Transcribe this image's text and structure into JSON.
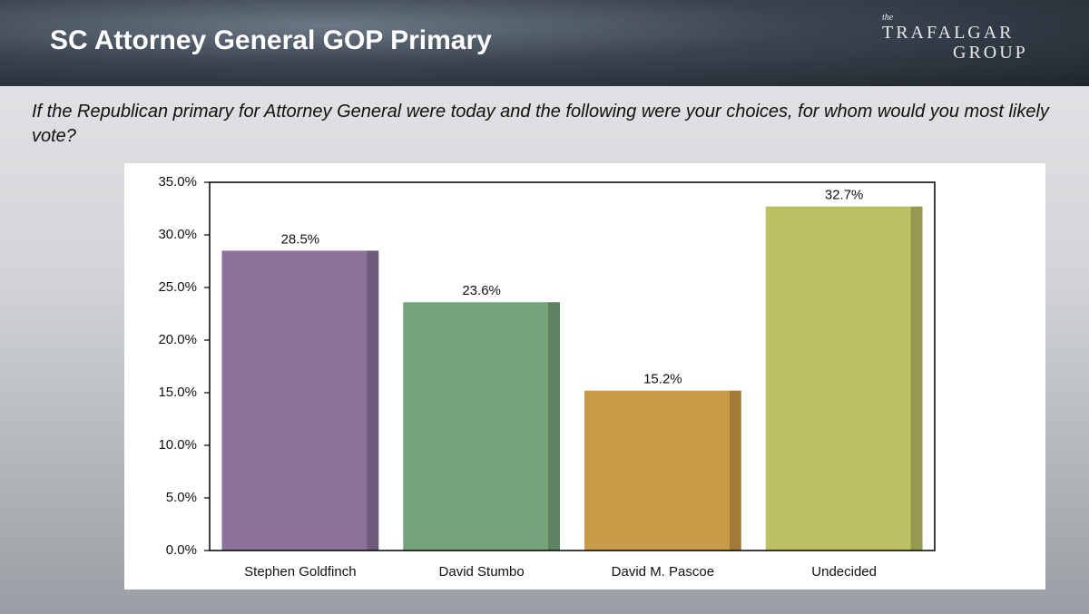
{
  "logo": {
    "small": "the",
    "line1": "TRAFALGAR",
    "line2": "GROUP"
  },
  "chart_data": {
    "type": "bar",
    "title": "SC Attorney General GOP Primary",
    "subtitle": "If the Republican primary for Attorney General were today and the following were your choices, for whom would you most likely vote?",
    "categories": [
      "Stephen Goldfinch",
      "David Stumbo",
      "David M. Pascoe",
      "Undecided"
    ],
    "values": [
      28.5,
      23.6,
      15.2,
      32.7
    ],
    "value_labels": [
      "28.5%",
      "23.6%",
      "15.2%",
      "32.7%"
    ],
    "colors": [
      "#8a7298",
      "#77a37a",
      "#c99a48",
      "#bcc064"
    ],
    "ylim": [
      0,
      35
    ],
    "yticks": [
      {
        "value": 0,
        "label": "0.0%"
      },
      {
        "value": 5,
        "label": "5.0%"
      },
      {
        "value": 10,
        "label": "10.0%"
      },
      {
        "value": 15,
        "label": "15.0%"
      },
      {
        "value": 20,
        "label": "20.0%"
      },
      {
        "value": 25,
        "label": "25.0%"
      },
      {
        "value": 30,
        "label": "30.0%"
      },
      {
        "value": 35,
        "label": "35.0%"
      }
    ],
    "grid": false
  }
}
